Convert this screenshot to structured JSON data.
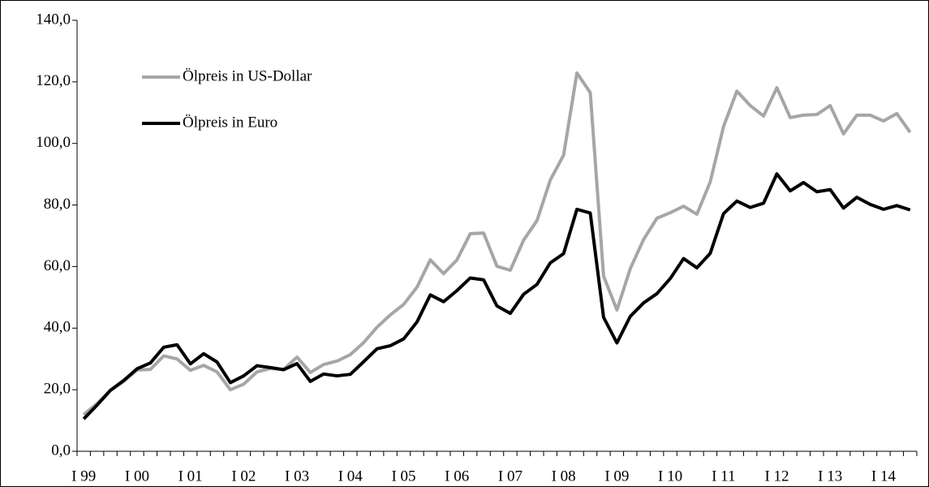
{
  "chart_data": {
    "type": "line",
    "categories": [
      "I 99",
      null,
      null,
      null,
      "I 00",
      null,
      null,
      null,
      "I 01",
      null,
      null,
      null,
      "I 02",
      null,
      null,
      null,
      "I 03",
      null,
      null,
      null,
      "I 04",
      null,
      null,
      null,
      "I 05",
      null,
      null,
      null,
      "I 06",
      null,
      null,
      null,
      "I 07",
      null,
      null,
      null,
      "I 08",
      null,
      null,
      null,
      "I 09",
      null,
      null,
      null,
      "I 10",
      null,
      null,
      null,
      "I 11",
      null,
      null,
      null,
      "I 12",
      null,
      null,
      null,
      "I 13",
      null,
      null,
      null,
      "I 14",
      null,
      null
    ],
    "series": [
      {
        "name": "Ölpreis in US-Dollar",
        "color": "#a6a6a6",
        "values": [
          11.9,
          15.5,
          19.8,
          22.7,
          26.4,
          26.6,
          31,
          30,
          26.3,
          27.9,
          25.8,
          20,
          21.8,
          25.8,
          26.9,
          26.6,
          30.6,
          25.6,
          28.2,
          29.3,
          31.4,
          35.3,
          40.3,
          44.3,
          47.7,
          53.3,
          62.2,
          57.7,
          62.2,
          70.7,
          70.9,
          60.1,
          58.8,
          68.6,
          74.9,
          88.1,
          96.2,
          122.9,
          116.5,
          56.9,
          45.9,
          59.3,
          68.8,
          75.7,
          77.5,
          79.6,
          77,
          87.5,
          105.5,
          117,
          112.3,
          108.9,
          118.1,
          108.4,
          109.2,
          109.4,
          112.3,
          103.1,
          109.2,
          109.2,
          107.3,
          109.7,
          103.6
        ]
      },
      {
        "name": "Ölpreis in Euro",
        "color": "#000000",
        "values": [
          10.5,
          15,
          19.8,
          23,
          26.8,
          28.7,
          33.8,
          34.6,
          28.4,
          31.7,
          29,
          22.3,
          24.5,
          27.8,
          27.2,
          26.5,
          28.5,
          22.7,
          25.1,
          24.5,
          25,
          29.1,
          33.3,
          34.3,
          36.5,
          42,
          50.8,
          48.6,
          52.2,
          56.3,
          55.7,
          47.2,
          44.8,
          51,
          54.2,
          61.2,
          64.2,
          78.6,
          77.4,
          43.5,
          35.2,
          43.8,
          48.2,
          51.2,
          56.1,
          62.6,
          59.6,
          64.3,
          77.2,
          81.3,
          79.2,
          80.6,
          90.1,
          84.6,
          87.3,
          84.3,
          85,
          79,
          82.5,
          80.2,
          78.6,
          79.8,
          78.4
        ]
      }
    ],
    "ylim": [
      0,
      140
    ],
    "yticks": [
      {
        "value": 0,
        "label": "0,0"
      },
      {
        "value": 20,
        "label": "20,0"
      },
      {
        "value": 40,
        "label": "40,0"
      },
      {
        "value": 60,
        "label": "60,0"
      },
      {
        "value": 80,
        "label": "80,0"
      },
      {
        "value": 100,
        "label": "100,0"
      },
      {
        "value": 120,
        "label": "120,0"
      },
      {
        "value": 140,
        "label": "140,0"
      }
    ],
    "grid": false,
    "legend": "upper left"
  }
}
